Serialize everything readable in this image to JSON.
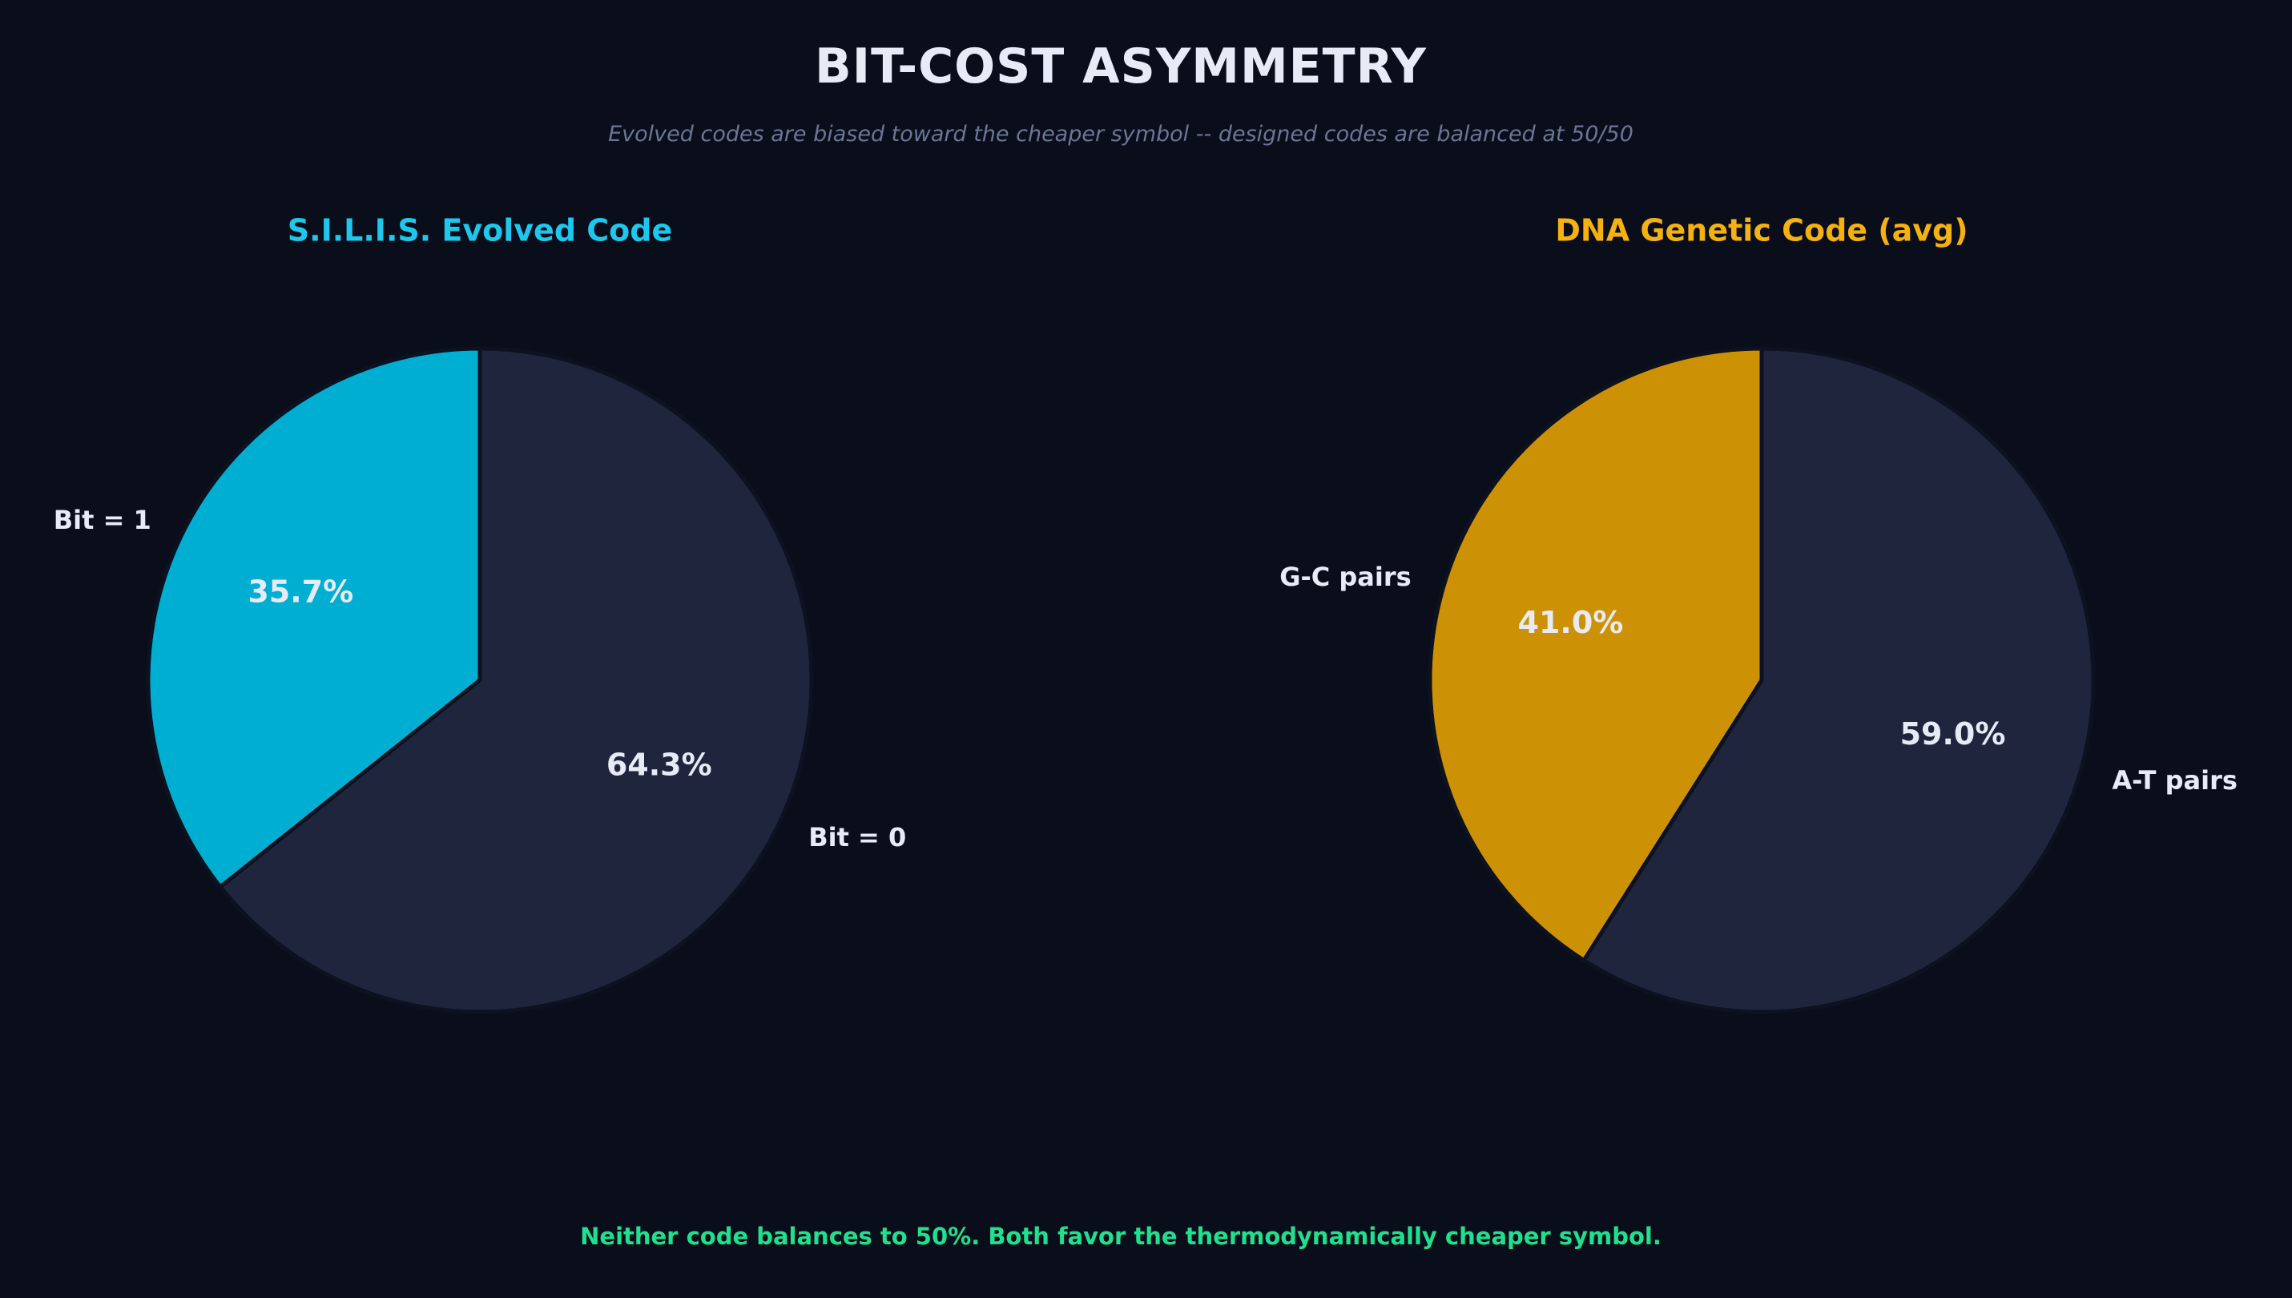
{
  "title": "BIT-COST ASYMMETRY",
  "subtitle": "Evolved codes are biased toward the cheaper symbol -- designed codes are balanced at 50/50",
  "footer_note": "Neither code balances to 50%.  Both favor the thermodynamically cheaper symbol.",
  "colors": {
    "background": "#0a0e1a",
    "dark_slice": "#1f253d",
    "cyan_slice": "#00aed1",
    "cyan_title": "#1cc8ee",
    "gold_slice": "#cc9105",
    "gold_title": "#f5b10f",
    "text_light": "#e6ebf5",
    "green_note": "#1fe08f"
  },
  "chart_data": [
    {
      "type": "pie",
      "title": "S.I.L.I.S. Evolved Code",
      "labels": [
        "Bit = 1",
        "Bit = 0"
      ],
      "values": [
        35.7,
        64.3
      ],
      "value_labels": [
        "35.7%",
        "64.3%"
      ],
      "colors": [
        "#00aed1",
        "#1f253d"
      ],
      "title_color": "#1cc8ee"
    },
    {
      "type": "pie",
      "title": "DNA Genetic Code (avg)",
      "labels": [
        "G-C pairs",
        "A-T pairs"
      ],
      "values": [
        41.0,
        59.0
      ],
      "value_labels": [
        "41.0%",
        "59.0%"
      ],
      "colors": [
        "#cc9105",
        "#1f253d"
      ],
      "title_color": "#f5b10f"
    }
  ]
}
